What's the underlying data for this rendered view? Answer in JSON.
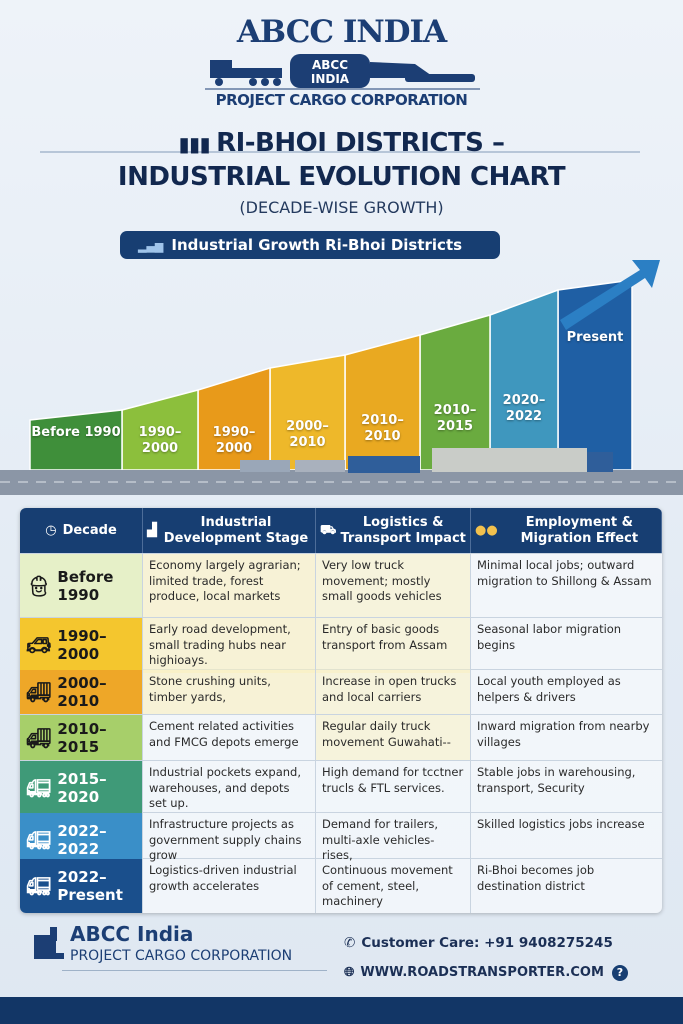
{
  "logo": {
    "title": "ABCC INDIA",
    "badge_line1": "ABCC",
    "badge_line2": "INDIA",
    "subtitle": "PROJECT CARGO CORPORATION"
  },
  "title": {
    "line1": "RI-BHOI DISTRICTS –",
    "line2": "INDUSTRIAL EVOLUTION CHART",
    "subtitle": "(DECADE-WISE GROWTH)",
    "icon": "factory-icon"
  },
  "banner": {
    "label": "Industrial Growth Ri-Bhoi Districts",
    "icon": "bar-chart-icon"
  },
  "growth_steps": [
    {
      "label": "Before 1990",
      "color": "#3f8f3a"
    },
    {
      "label": "1990– 2000",
      "color": "#8cbf3c"
    },
    {
      "label": "1990– 2000",
      "color": "#e89a1a"
    },
    {
      "label": "2000– 2010",
      "color": "#eeb82a"
    },
    {
      "label": "2010– 2010",
      "color": "#e9a921"
    },
    {
      "label": "2010– 2015",
      "color": "#6aab3f"
    },
    {
      "label": "2020– 2022",
      "color": "#3f97be"
    },
    {
      "label": "Present",
      "color": "#1f5fa4"
    }
  ],
  "table": {
    "headers": [
      {
        "label": "Decade",
        "icon": "clock-icon"
      },
      {
        "label": "Industrial Development Stage",
        "icon": "factory-icon"
      },
      {
        "label": "Logistics & Transport Impact",
        "icon": "truck-icon"
      },
      {
        "label": "Employment & Migration Effect",
        "icon": "people-icon"
      }
    ],
    "rows": [
      {
        "decade": "Before 1990",
        "color": "#e6f0c8",
        "icon": "worker-icon",
        "industrial": "Economy largely agrarian; limited trade, forest produce, local markets",
        "logistics": "Very low truck movement; mostly small goods vehicles",
        "employment": "Minimal local jobs; outward migration to Shillong & Assam"
      },
      {
        "decade": "1990– 2000",
        "color": "#f4c62e",
        "icon": "jeep-icon",
        "industrial": "Early road development, small trading hubs near highioays.",
        "logistics": "Entry of basic goods transport from Assam",
        "employment": "Seasonal labor migration begins"
      },
      {
        "decade": "2000– 2010",
        "color": "#eea728",
        "icon": "crane-truck-icon",
        "industrial": "Stone crushing units, timber yards,",
        "logistics": "Increase in open trucks and local carriers",
        "employment": "Local youth employed as helpers & drivers"
      },
      {
        "decade": "2010– 2015",
        "color": "#a7cf6a",
        "icon": "delivery-truck-icon",
        "industrial": "Cement related activities and FMCG depots emerge",
        "logistics": "Regular daily truck movement Guwahati--",
        "employment": "Inward migration from nearby villages"
      },
      {
        "decade": "2015– 2020",
        "color": "#3f9a78",
        "icon": "container-truck-icon",
        "industrial": "Industrial pockets expand, warehouses, and depots set up.",
        "logistics": "High demand for tcctner trucls & FTL services.",
        "employment": "Stable jobs in warehousing, transport, Security"
      },
      {
        "decade": "2022– 2022",
        "color": "#3a8fc8",
        "icon": "trailer-icon",
        "industrial": "Infrastructure projects as government supply chains grow",
        "logistics": "Demand for trailers, multi-axle vehicles-rises,",
        "employment": "Skilled logistics jobs increase"
      },
      {
        "decade": "2022– Present",
        "color": "#1a4f8c",
        "icon": "multi-axle-truck-icon",
        "industrial": "Logistics-driven industrial growth accelerates",
        "logistics": "Continuous movement of cement, steel, machinery",
        "employment": "Ri-Bhoi becomes job destination district"
      }
    ]
  },
  "footer": {
    "name": "ABCC India",
    "subtitle": "PROJECT CARGO CORPORATION",
    "customer_care": "Customer Care: +91 9408275245",
    "website": "WWW.ROADSTRANSPORTER.COM",
    "phone_icon": "phone-icon",
    "globe_icon": "globe-icon",
    "help_icon": "help-icon"
  }
}
